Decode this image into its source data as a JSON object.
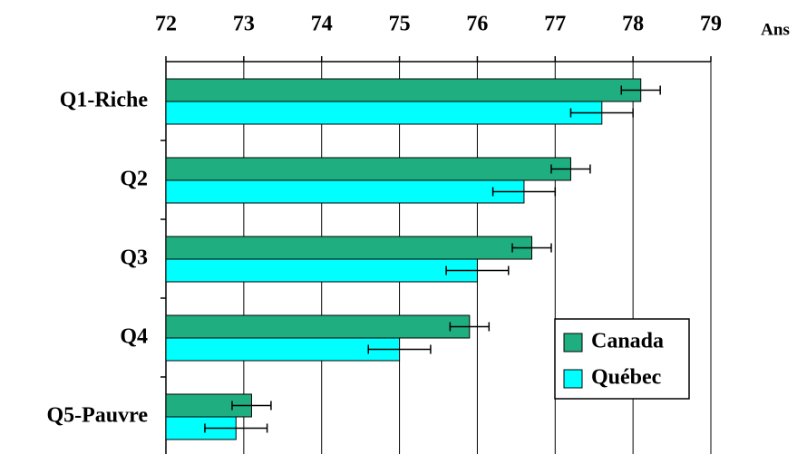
{
  "chart_data": {
    "type": "hbar",
    "x_label": "Ans",
    "categories": [
      "Q1-Riche",
      "Q2",
      "Q3",
      "Q4",
      "Q5-Pauvre"
    ],
    "series": [
      {
        "name": "Canada",
        "color": "#1fae80",
        "values": [
          78.1,
          77.2,
          76.7,
          75.9,
          73.1
        ],
        "errors": [
          0.25,
          0.25,
          0.25,
          0.25,
          0.25
        ]
      },
      {
        "name": "Québec",
        "color": "#00ffff",
        "values": [
          77.6,
          76.6,
          76.0,
          75.0,
          72.9
        ],
        "errors": [
          0.4,
          0.4,
          0.4,
          0.4,
          0.4
        ]
      }
    ],
    "xlim": [
      72,
      79
    ],
    "xticks": [
      72,
      73,
      74,
      75,
      76,
      77,
      78,
      79
    ],
    "grid": true,
    "legend": "lower right"
  }
}
